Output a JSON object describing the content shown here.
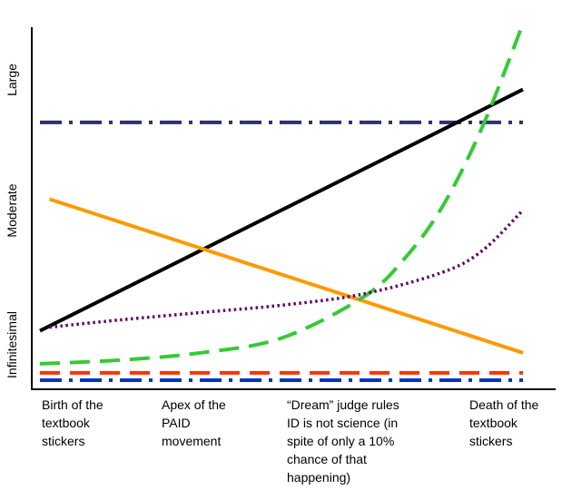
{
  "chart_data": {
    "type": "line",
    "title": "",
    "xlabel": "",
    "ylabel": "",
    "grid": false,
    "legend": "none",
    "y_levels": [
      "Infinitesimal",
      "Moderate",
      "Large"
    ],
    "x_ticks": [
      "Birth of the\ntextbook\nstickers",
      "Apex of the\nPAID\nmovement",
      "“Dream” judge rules\nID is not science (in\nspite of only a 10%\nchance of that\nhappening)",
      "Death of the\ntextbook\nstickers"
    ],
    "xlim": [
      0,
      3
    ],
    "ylim": [
      0,
      100
    ],
    "series": [
      {
        "color": "#2e2d7b",
        "dash": "dashdot",
        "x": [
          0,
          3
        ],
        "y": [
          71,
          71
        ]
      },
      {
        "color": "#000000",
        "dash": "solid",
        "x": [
          0,
          3
        ],
        "y": [
          14,
          80
        ]
      },
      {
        "color": "#ff9900",
        "dash": "solid",
        "x": [
          0.06,
          3
        ],
        "y": [
          50,
          8
        ]
      },
      {
        "color": "#33cc33",
        "dash": "dashed",
        "curve": "exponential",
        "x": [
          0,
          0.5,
          1,
          1.5,
          2,
          2.25,
          2.5,
          2.75,
          3
        ],
        "y": [
          5,
          6,
          8,
          12,
          23,
          33,
          48,
          70,
          98
        ]
      },
      {
        "color": "#660066",
        "dash": "dotted",
        "curve": "exponential",
        "x": [
          0.06,
          0.5,
          1,
          1.5,
          2,
          2.5,
          2.75,
          3
        ],
        "y": [
          15,
          17,
          19,
          21,
          24,
          30,
          36,
          47
        ]
      },
      {
        "color": "#ff3300",
        "dash": "dashed",
        "x": [
          0,
          3
        ],
        "y": [
          2.5,
          2.5
        ]
      },
      {
        "color": "#0033cc",
        "dash": "dashdot",
        "x": [
          0,
          3
        ],
        "y": [
          0.5,
          0.5
        ]
      }
    ]
  }
}
